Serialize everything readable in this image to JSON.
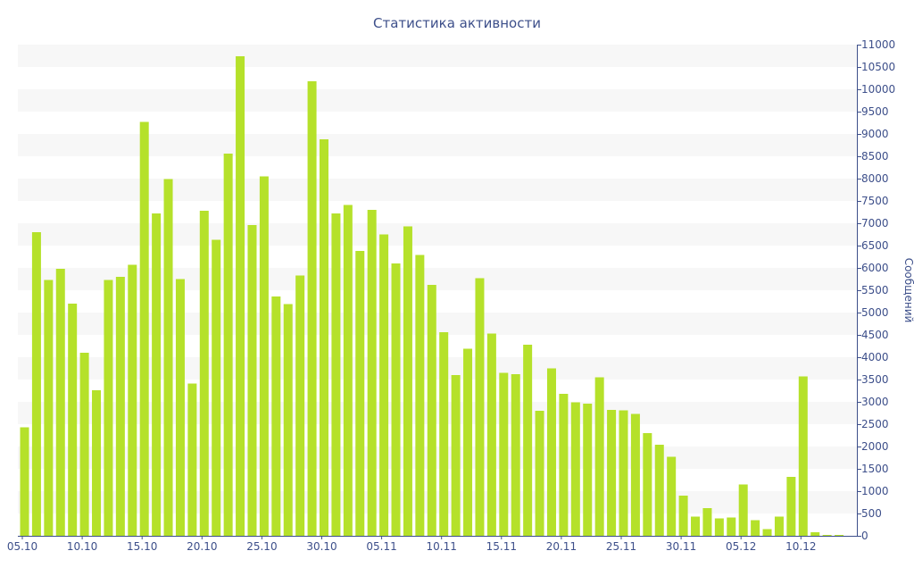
{
  "chart_data": {
    "type": "bar",
    "title": "Статистика активности",
    "xlabel": "",
    "ylabel": "Сообщений",
    "ylim": [
      0,
      11000
    ],
    "y_ticks": [
      0,
      500,
      1000,
      1500,
      2000,
      2500,
      3000,
      3500,
      4000,
      4500,
      5000,
      5500,
      6000,
      6500,
      7000,
      7500,
      8000,
      8500,
      9000,
      9500,
      10000,
      10500,
      11000
    ],
    "x_ticks": [
      "05.10",
      "10.10",
      "15.10",
      "20.10",
      "25.10",
      "30.10",
      "05.11",
      "10.11",
      "15.11",
      "20.11",
      "25.11",
      "30.11",
      "05.12",
      "10.12"
    ],
    "grid": "horizontal alternating bands",
    "bar_color": "#b5e12a",
    "band_color": "#f7f7f7",
    "text_color": "#3d4f8a",
    "y_axis_position": "right",
    "values": [
      2430,
      6800,
      5730,
      5980,
      5200,
      4100,
      3260,
      5730,
      5800,
      6070,
      9270,
      7220,
      7990,
      5750,
      3410,
      7280,
      6630,
      8560,
      10740,
      6960,
      8050,
      5360,
      5190,
      5830,
      10180,
      8880,
      7220,
      7410,
      6380,
      7300,
      6750,
      6100,
      6930,
      6290,
      5620,
      4560,
      3600,
      4190,
      5770,
      4530,
      3650,
      3620,
      4280,
      2800,
      3750,
      3180,
      2990,
      2960,
      3550,
      2820,
      2810,
      2730,
      2300,
      2040,
      1770,
      900,
      430,
      620,
      390,
      410,
      1150,
      350,
      150,
      430,
      1320,
      3570,
      80,
      20,
      20
    ]
  }
}
